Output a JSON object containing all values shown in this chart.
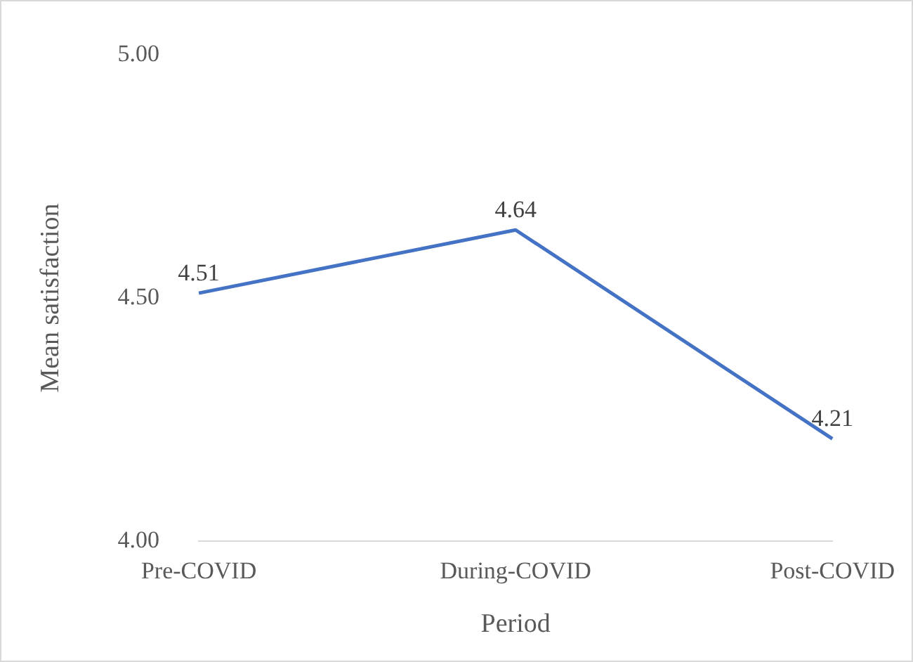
{
  "chart_data": {
    "type": "line",
    "xlabel": "Period",
    "ylabel": "Mean satisfaction",
    "categories": [
      "Pre-COVID",
      "During-COVID",
      "Post-COVID"
    ],
    "series": [
      {
        "color": "#4472c4",
        "values": [
          4.51,
          4.64,
          4.21
        ]
      }
    ],
    "ylim": [
      4,
      5
    ],
    "yticks": [
      {
        "value": 4,
        "label": "4.00"
      },
      {
        "value": 4.5,
        "label": "4.50"
      },
      {
        "value": 5,
        "label": "5.00"
      }
    ],
    "grid": false,
    "legend": false,
    "marker": "none",
    "line_style": "solid",
    "data_labels": true
  }
}
